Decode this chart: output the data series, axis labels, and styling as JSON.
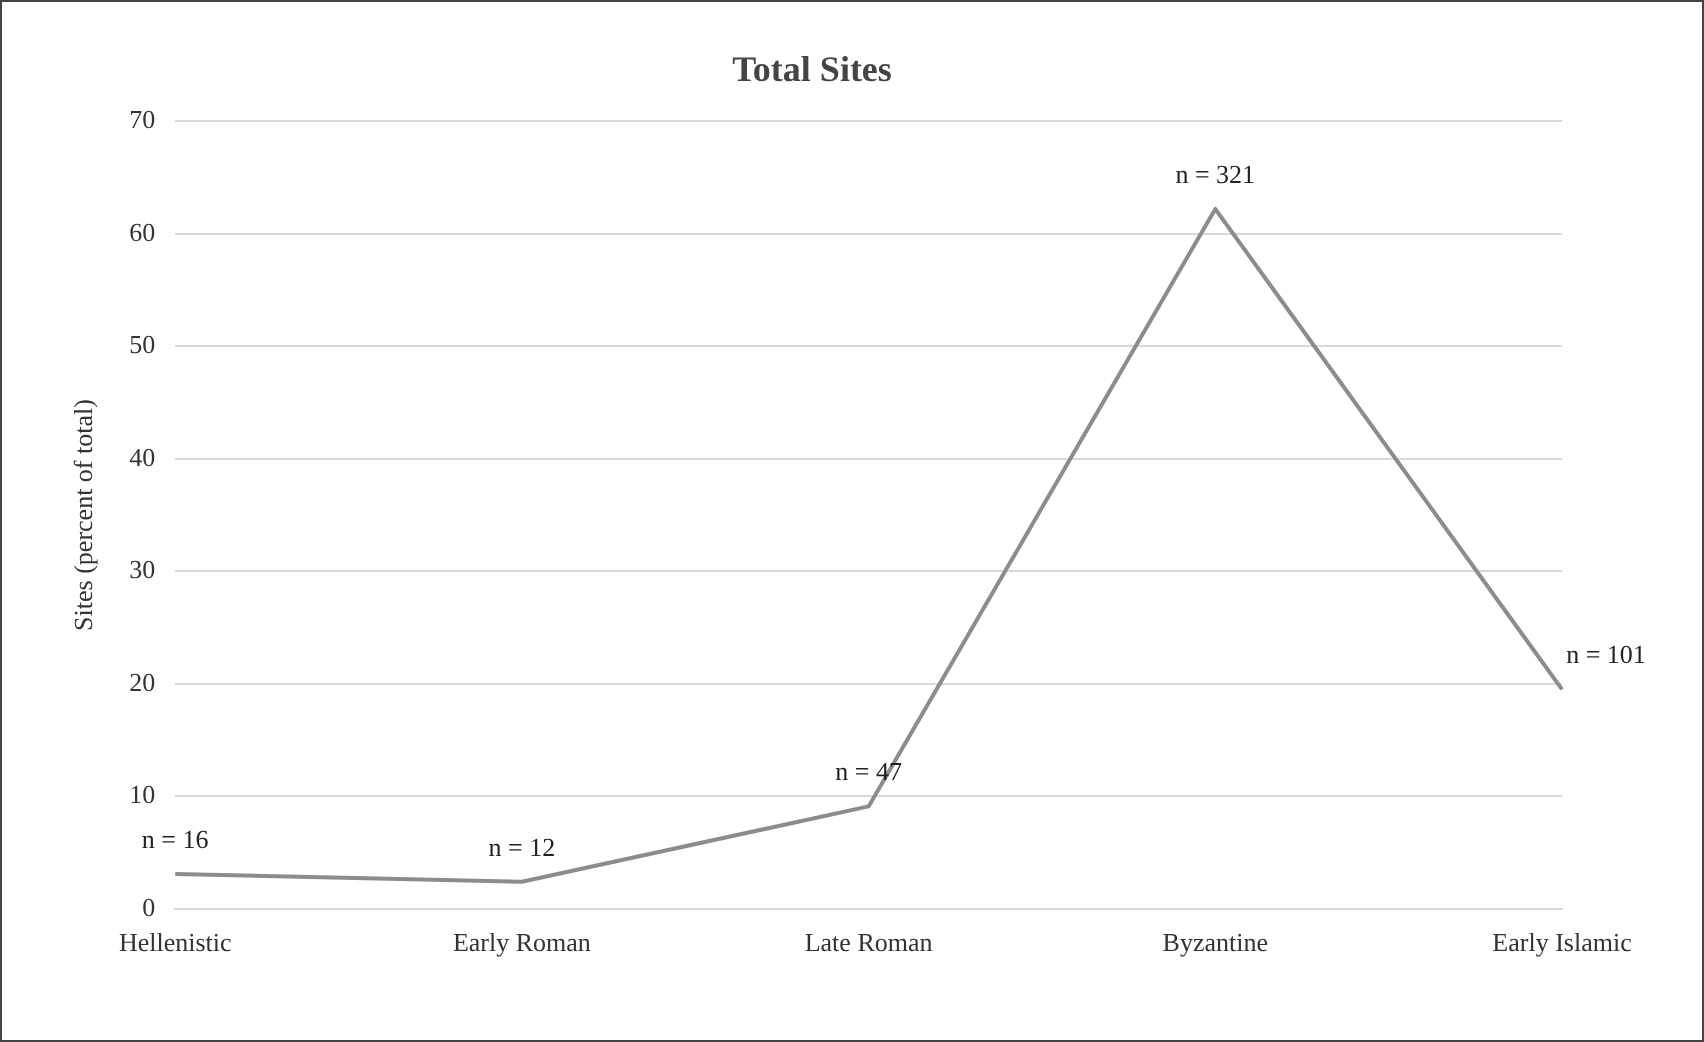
{
  "chart_data": {
    "type": "line",
    "title": "Total Sites",
    "ylabel": "Sites (percent of total)",
    "categories": [
      "Hellenistic",
      "Early Roman",
      "Late Roman",
      "Byzantine",
      "Early Islamic"
    ],
    "series": [
      {
        "color": "#8c8c8c",
        "values": [
          3.1,
          2.4,
          9.1,
          62.2,
          19.5
        ]
      }
    ],
    "ylim": [
      0,
      70
    ],
    "yticks": [
      0,
      10,
      20,
      30,
      40,
      50,
      60,
      70
    ],
    "grid": "y",
    "legend": false,
    "marker": "none",
    "line_style": "solid",
    "annotations": [
      {
        "text": "n = 16",
        "x": "Hellenistic",
        "y": 3.1
      },
      {
        "text": "n = 12",
        "x": "Early Roman",
        "y": 2.4
      },
      {
        "text": "n = 47",
        "x": "Late Roman",
        "y": 9.1
      },
      {
        "text": "n = 321",
        "x": "Byzantine",
        "y": 62.2
      },
      {
        "text": "n = 101",
        "x": "Early Islamic",
        "y": 19.5
      }
    ]
  }
}
